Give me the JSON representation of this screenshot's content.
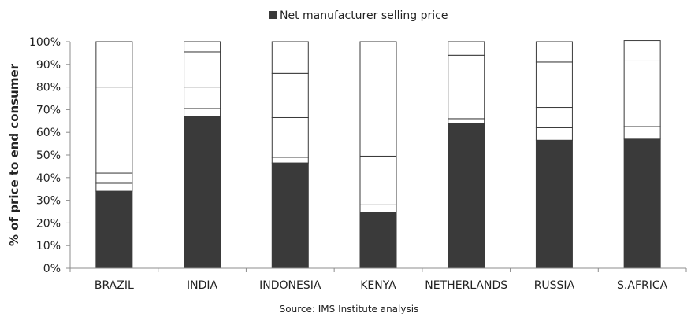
{
  "chart_data": {
    "type": "bar",
    "stacked": true,
    "categories": [
      "BRAZIL",
      "INDIA",
      "INDONESIA",
      "KENYA",
      "NETHERLANDS",
      "RUSSIA",
      "S.AFRICA"
    ],
    "series": [
      {
        "name": "Net manufacturer selling price",
        "color": "#3a3a3a",
        "values": [
          34,
          67,
          46.5,
          24.5,
          64,
          56.5,
          57
        ]
      },
      {
        "color": "#ffffff",
        "values": [
          3.5,
          3.5,
          2.5,
          3.5,
          2,
          5.5,
          5.5
        ]
      },
      {
        "color": "#ffffff",
        "values": [
          4.5,
          9.5,
          17.5,
          21.5,
          28,
          9,
          29
        ]
      },
      {
        "color": "#ffffff",
        "values": [
          38,
          15.5,
          19.5,
          50.5,
          6,
          20,
          9
        ]
      },
      {
        "color": "#ffffff",
        "values": [
          20,
          4.5,
          14,
          0,
          0,
          9,
          0
        ]
      }
    ],
    "ylabel": "% of price to end consumer",
    "xlabel": "",
    "ylim": [
      0,
      100
    ],
    "yticks": [
      "0%",
      "10%",
      "20%",
      "30%",
      "40%",
      "50%",
      "60%",
      "70%",
      "80%",
      "90%",
      "100%"
    ],
    "legend": {
      "position": "top",
      "label": "Net manufacturer selling price",
      "swatch_color": "#3a3a3a"
    },
    "source": "Source: IMS Institute analysis",
    "grid": false
  }
}
